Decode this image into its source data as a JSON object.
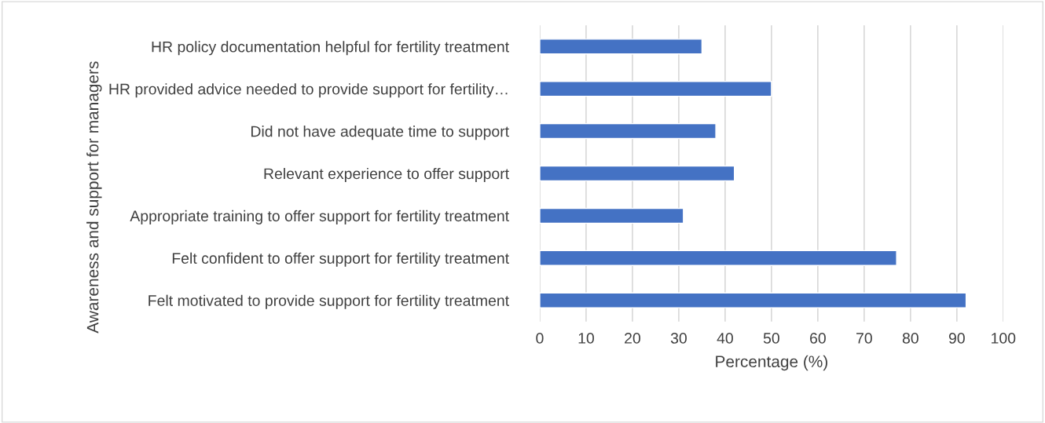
{
  "chart_data": {
    "type": "bar",
    "orientation": "horizontal",
    "categories": [
      "HR policy documentation helpful for fertility treatment",
      "HR provided advice needed to provide support for fertility…",
      "Did not have adequate time to support",
      "Relevant experience to offer support",
      "Appropriate training to offer support for fertility treatment",
      "Felt confident to offer support for fertility treatment",
      "Felt motivated to provide support for fertility treatment"
    ],
    "values": [
      35,
      50,
      38,
      42,
      31,
      77,
      92
    ],
    "color": "#4472c4",
    "xlabel": "Percentage (%)",
    "ylabel": "Awareness and support for managers",
    "xlim": [
      0,
      100
    ],
    "xticks": [
      0,
      10,
      20,
      30,
      40,
      50,
      60,
      70,
      80,
      90,
      100
    ],
    "grid": "x",
    "legend": false
  }
}
